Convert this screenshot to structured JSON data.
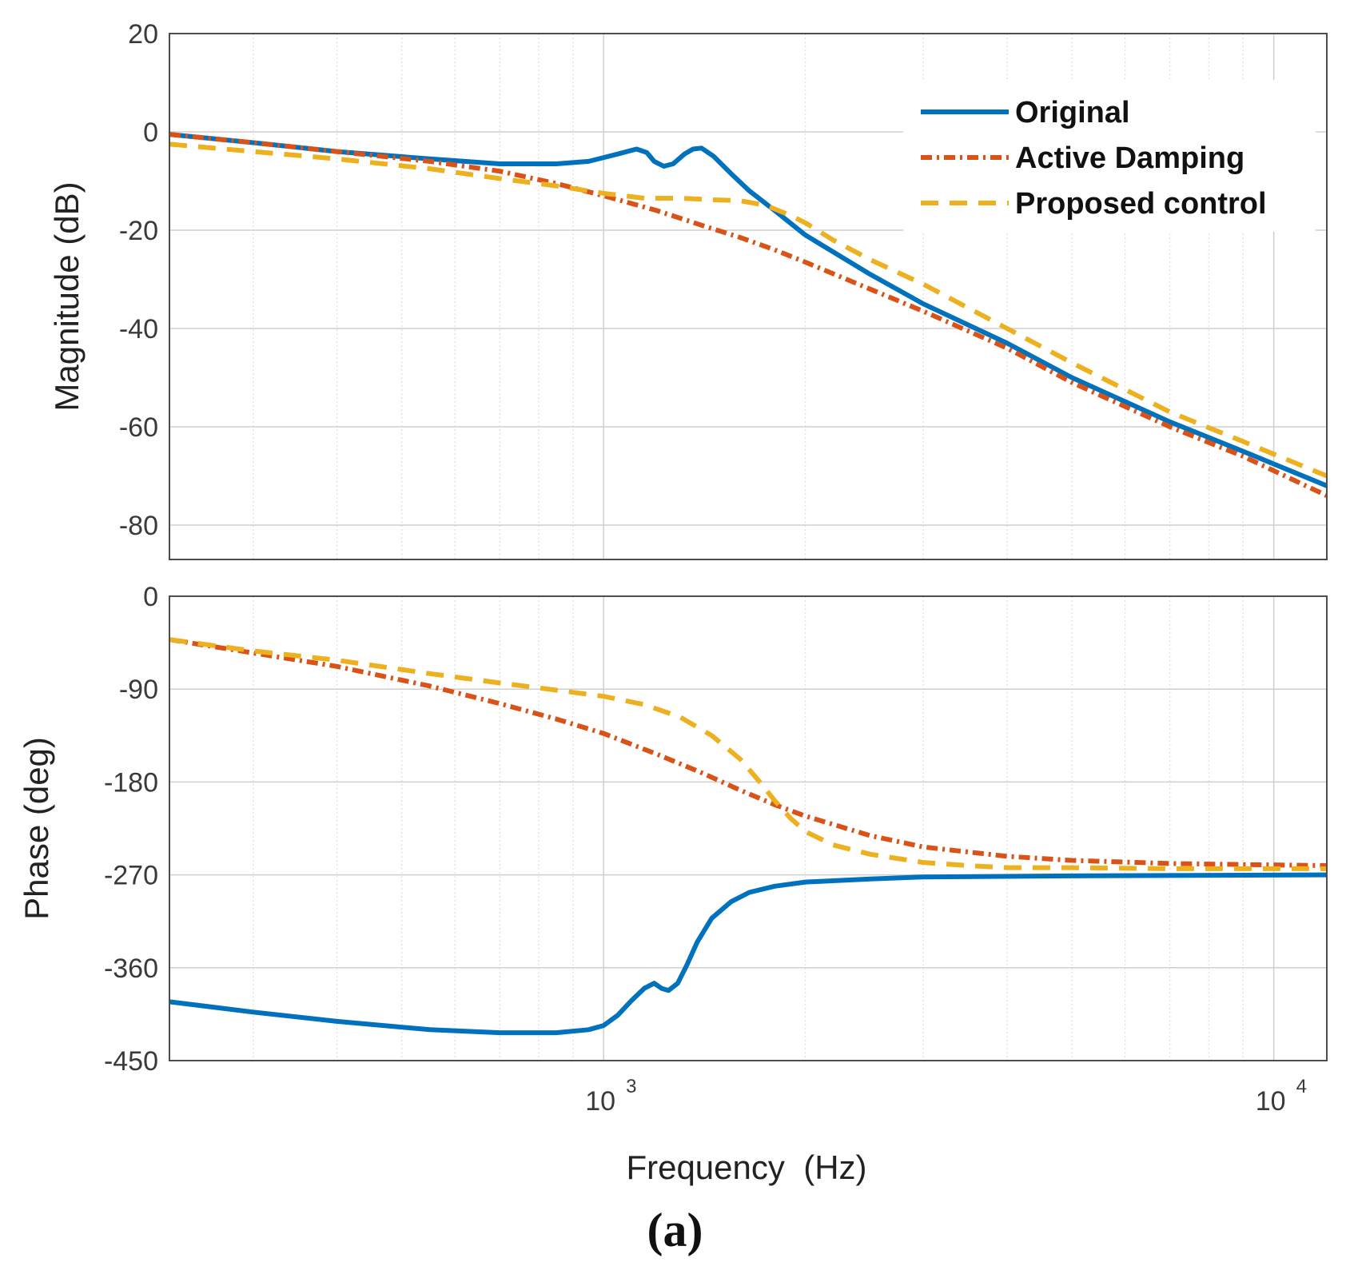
{
  "caption": "(a)",
  "chart_data": [
    {
      "type": "line",
      "panel": "magnitude",
      "ylabel": "Magnitude (dB)",
      "xlabel": "",
      "xscale": "log",
      "xlim": [
        225,
        12000
      ],
      "ylim": [
        -87,
        20
      ],
      "yticks": [
        20,
        0,
        -20,
        -40,
        -60,
        -80
      ],
      "ytick_labels": [
        "20",
        "0",
        "-20",
        "-40",
        "-60",
        "-80"
      ],
      "grid": true,
      "legend_position": "top-right",
      "legend": [
        "Original",
        "Active Damping",
        "Proposed control"
      ],
      "series": [
        {
          "name": "Original",
          "color": "#0072BD",
          "dash": "solid",
          "x": [
            225,
            300,
            400,
            550,
            700,
            850,
            950,
            1050,
            1120,
            1160,
            1190,
            1230,
            1270,
            1320,
            1360,
            1400,
            1460,
            1550,
            1650,
            1800,
            2000,
            2500,
            3000,
            4000,
            5000,
            7000,
            9000,
            12000
          ],
          "y": [
            -0.5,
            -2.2,
            -4,
            -5.5,
            -6.5,
            -6.5,
            -6,
            -4.5,
            -3.5,
            -4.2,
            -6,
            -7,
            -6.5,
            -4.5,
            -3.5,
            -3.3,
            -5,
            -8.5,
            -12,
            -16,
            -21,
            -29,
            -35,
            -43,
            -50,
            -59,
            -65,
            -72
          ]
        },
        {
          "name": "Active Damping",
          "color": "#D95319",
          "dash": "dashdot",
          "x": [
            225,
            300,
            400,
            550,
            700,
            850,
            1000,
            1200,
            1400,
            1600,
            1800,
            2000,
            2500,
            3000,
            4000,
            5000,
            7000,
            9000,
            12000
          ],
          "y": [
            -0.5,
            -2.2,
            -4,
            -6,
            -8,
            -10.5,
            -13,
            -16,
            -19,
            -21.5,
            -24,
            -26.5,
            -32,
            -36.5,
            -44,
            -51,
            -60,
            -66,
            -74
          ]
        },
        {
          "name": "Proposed control",
          "color": "#EDB120",
          "dash": "dashed",
          "x": [
            225,
            300,
            400,
            550,
            700,
            850,
            1000,
            1150,
            1300,
            1450,
            1600,
            1750,
            1900,
            2000,
            2200,
            2500,
            3000,
            4000,
            5000,
            7000,
            9000,
            12000
          ],
          "y": [
            -2.5,
            -4,
            -5.5,
            -7.5,
            -9.5,
            -11,
            -12.5,
            -13.5,
            -13.5,
            -13.8,
            -14,
            -15,
            -17,
            -18.5,
            -22,
            -26,
            -31,
            -40,
            -47,
            -57,
            -63,
            -70
          ]
        }
      ]
    },
    {
      "type": "line",
      "panel": "phase",
      "ylabel": "Phase (deg)",
      "xlabel": "Frequency  (Hz)",
      "xscale": "log",
      "xlim": [
        225,
        12000
      ],
      "ylim": [
        -450,
        0
      ],
      "xticks": [
        1000,
        10000
      ],
      "xtick_labels": [
        {
          "base": "10",
          "exp": "3"
        },
        {
          "base": "10",
          "exp": "4"
        }
      ],
      "yticks": [
        0,
        -90,
        -180,
        -270,
        -360,
        -450
      ],
      "ytick_labels": [
        "0",
        "-90",
        "-180",
        "-270",
        "-360",
        "-450"
      ],
      "grid": true,
      "series": [
        {
          "name": "Original",
          "color": "#0072BD",
          "dash": "solid",
          "x": [
            225,
            300,
            400,
            550,
            700,
            850,
            950,
            1000,
            1050,
            1100,
            1150,
            1190,
            1220,
            1250,
            1290,
            1330,
            1380,
            1450,
            1550,
            1650,
            1800,
            2000,
            2500,
            3000,
            5000,
            12000
          ],
          "y": [
            -393,
            -403,
            -412,
            -420,
            -423,
            -423,
            -420,
            -416,
            -406,
            -392,
            -380,
            -375,
            -380,
            -382,
            -375,
            -358,
            -335,
            -312,
            -296,
            -287,
            -281,
            -277,
            -274,
            -272,
            -271,
            -270
          ]
        },
        {
          "name": "Active Damping",
          "color": "#D95319",
          "dash": "dashdot",
          "x": [
            225,
            300,
            400,
            550,
            700,
            850,
            1000,
            1200,
            1400,
            1600,
            1800,
            2000,
            2500,
            3000,
            4000,
            5000,
            7000,
            9000,
            12000
          ],
          "y": [
            -42,
            -55,
            -68,
            -87,
            -104,
            -119,
            -133,
            -153,
            -171,
            -188,
            -202,
            -213,
            -232,
            -243,
            -252,
            -256,
            -259,
            -260,
            -261
          ]
        },
        {
          "name": "Proposed control",
          "color": "#EDB120",
          "dash": "dashed",
          "x": [
            225,
            300,
            400,
            550,
            700,
            850,
            1000,
            1150,
            1300,
            1450,
            1600,
            1700,
            1800,
            1900,
            2000,
            2200,
            2500,
            3000,
            3500,
            4000,
            5000,
            7000,
            9000,
            12000
          ],
          "y": [
            -42,
            -53,
            -62,
            -75,
            -84,
            -91,
            -97,
            -105,
            -117,
            -135,
            -158,
            -178,
            -198,
            -215,
            -228,
            -241,
            -250,
            -258,
            -261,
            -263,
            -263,
            -264,
            -264,
            -264
          ]
        }
      ]
    }
  ]
}
